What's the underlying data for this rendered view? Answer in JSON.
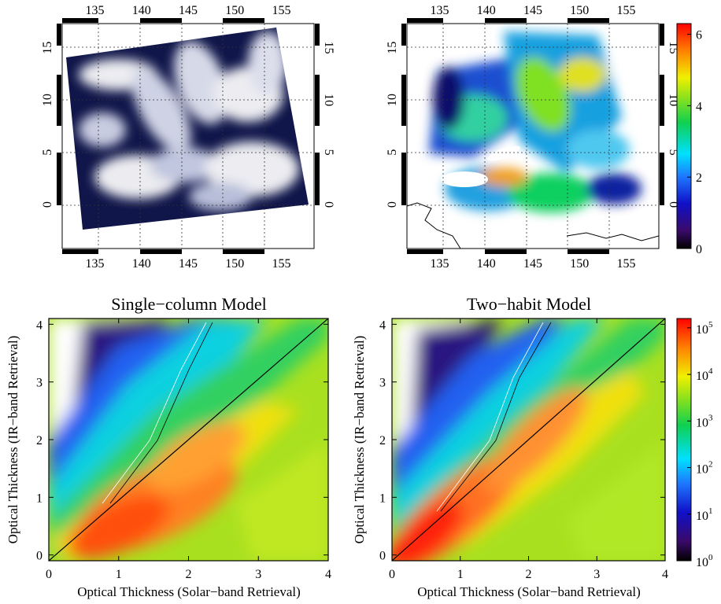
{
  "chart_data": [
    {
      "type": "map",
      "panel": "top-left",
      "x_ticks": [
        "135",
        "140",
        "145",
        "150",
        "155"
      ],
      "y_ticks": [
        "0",
        "5",
        "10",
        "15"
      ],
      "x_values": [
        135,
        140,
        145,
        150,
        155
      ],
      "y_values": [
        0,
        5,
        10,
        15
      ],
      "xlim": [
        131.5,
        158.5
      ],
      "ylim": [
        -4.2,
        17.3
      ],
      "grid": true,
      "colors": {
        "image_dark": "#10164a",
        "image_light": "#ffffff"
      }
    },
    {
      "type": "map",
      "panel": "top-right",
      "x_ticks": [
        "135",
        "140",
        "145",
        "150",
        "155"
      ],
      "y_ticks": [
        "0",
        "5",
        "10",
        "15"
      ],
      "x_values": [
        135,
        140,
        145,
        150,
        155
      ],
      "y_values": [
        0,
        5,
        10,
        15
      ],
      "xlim": [
        131.5,
        158.5
      ],
      "ylim": [
        -4.2,
        17.3
      ],
      "grid": true,
      "colorbar": {
        "ticks": [
          "0",
          "2",
          "4",
          "6"
        ],
        "values": [
          0,
          2,
          4,
          6
        ],
        "range": [
          0,
          6.3
        ]
      }
    },
    {
      "type": "heatmap",
      "panel": "bottom-left",
      "title": "Single−column Model",
      "xlabel": "Optical Thickness (Solar−band Retrieval)",
      "ylabel": "Optical Thickness (IR−band Retrieval)",
      "x_ticks": [
        "0",
        "1",
        "2",
        "3",
        "4"
      ],
      "y_ticks": [
        "0",
        "1",
        "2",
        "3",
        "4"
      ],
      "x_values": [
        0,
        1,
        2,
        3,
        4
      ],
      "y_values": [
        0,
        1,
        2,
        3,
        4
      ],
      "xlim": [
        0,
        4
      ],
      "ylim": [
        -0.1,
        4.1
      ],
      "one_to_one_line": true
    },
    {
      "type": "heatmap",
      "panel": "bottom-right",
      "title": "Two−habit Model",
      "xlabel": "Optical Thickness (Solar−band Retrieval)",
      "ylabel": "Optical Thickness (IR−band Retrieval)",
      "x_ticks": [
        "0",
        "1",
        "2",
        "3",
        "4"
      ],
      "y_ticks": [
        "0",
        "1",
        "2",
        "3",
        "4"
      ],
      "x_values": [
        0,
        1,
        2,
        3,
        4
      ],
      "y_values": [
        0,
        1,
        2,
        3,
        4
      ],
      "xlim": [
        0,
        4
      ],
      "ylim": [
        -0.1,
        4.1
      ],
      "one_to_one_line": true,
      "colorbar": {
        "scale": "log",
        "base": "10",
        "exponents": [
          "0",
          "1",
          "2",
          "3",
          "4",
          "5"
        ],
        "range": [
          0,
          5.2
        ]
      }
    }
  ]
}
